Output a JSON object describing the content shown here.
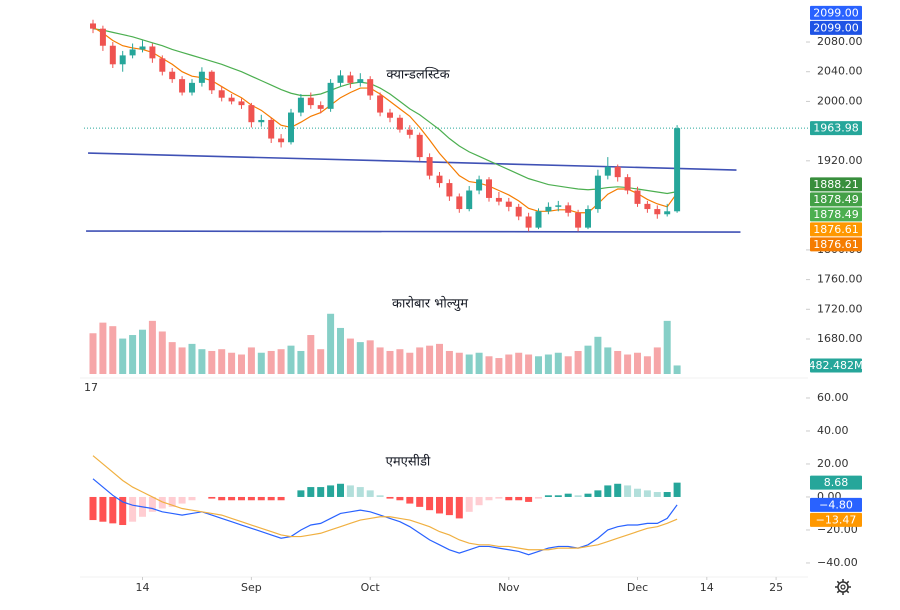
{
  "chart_data": [
    {
      "type": "candlestick",
      "title": "क्यान्डलस्टिक",
      "up_color": "#26a69a",
      "down_color": "#ef5350",
      "candles": [
        [
          2105,
          2110,
          2092,
          2098
        ],
        [
          2098,
          2102,
          2068,
          2075
        ],
        [
          2075,
          2080,
          2045,
          2050
        ],
        [
          2050,
          2068,
          2040,
          2062
        ],
        [
          2062,
          2078,
          2058,
          2070
        ],
        [
          2070,
          2082,
          2066,
          2074
        ],
        [
          2074,
          2078,
          2052,
          2058
        ],
        [
          2058,
          2062,
          2035,
          2040
        ],
        [
          2040,
          2045,
          2025,
          2030
        ],
        [
          2030,
          2034,
          2008,
          2012
        ],
        [
          2012,
          2030,
          2008,
          2025
        ],
        [
          2025,
          2046,
          2020,
          2040
        ],
        [
          2040,
          2042,
          2010,
          2015
        ],
        [
          2015,
          2020,
          2000,
          2005
        ],
        [
          2005,
          2010,
          1996,
          2000
        ],
        [
          2000,
          2004,
          1990,
          1995
        ],
        [
          1995,
          1998,
          1965,
          1972
        ],
        [
          1972,
          1982,
          1966,
          1975
        ],
        [
          1975,
          1978,
          1944,
          1950
        ],
        [
          1950,
          1956,
          1938,
          1945
        ],
        [
          1945,
          1990,
          1942,
          1985
        ],
        [
          1985,
          2010,
          1980,
          2005
        ],
        [
          2005,
          2012,
          1990,
          1995
        ],
        [
          1995,
          2000,
          1984,
          1990
        ],
        [
          1990,
          2030,
          1986,
          2025
        ],
        [
          2025,
          2042,
          2020,
          2035
        ],
        [
          2035,
          2040,
          2018,
          2025
        ],
        [
          2025,
          2038,
          2020,
          2030
        ],
        [
          2030,
          2034,
          2002,
          2008
        ],
        [
          2008,
          2012,
          1980,
          1985
        ],
        [
          1985,
          1990,
          1972,
          1978
        ],
        [
          1978,
          1982,
          1958,
          1962
        ],
        [
          1962,
          1968,
          1950,
          1955
        ],
        [
          1955,
          1958,
          1920,
          1925
        ],
        [
          1925,
          1930,
          1895,
          1900
        ],
        [
          1900,
          1905,
          1884,
          1890
        ],
        [
          1890,
          1895,
          1866,
          1872
        ],
        [
          1872,
          1876,
          1850,
          1855
        ],
        [
          1855,
          1886,
          1852,
          1880
        ],
        [
          1880,
          1900,
          1875,
          1895
        ],
        [
          1895,
          1898,
          1865,
          1870
        ],
        [
          1870,
          1878,
          1860,
          1865
        ],
        [
          1865,
          1870,
          1852,
          1858
        ],
        [
          1858,
          1862,
          1840,
          1845
        ],
        [
          1845,
          1850,
          1825,
          1830
        ],
        [
          1830,
          1856,
          1828,
          1852
        ],
        [
          1852,
          1864,
          1848,
          1858
        ],
        [
          1858,
          1866,
          1852,
          1860
        ],
        [
          1860,
          1864,
          1845,
          1850
        ],
        [
          1850,
          1854,
          1825,
          1830
        ],
        [
          1830,
          1860,
          1828,
          1855
        ],
        [
          1855,
          1908,
          1850,
          1900
        ],
        [
          1900,
          1925,
          1895,
          1912
        ],
        [
          1912,
          1915,
          1892,
          1898
        ],
        [
          1898,
          1902,
          1875,
          1880
        ],
        [
          1880,
          1885,
          1858,
          1862
        ],
        [
          1862,
          1866,
          1850,
          1855
        ],
        [
          1855,
          1860,
          1842,
          1848
        ],
        [
          1848,
          1862,
          1845,
          1852
        ],
        [
          1852,
          1968,
          1850,
          1963.98
        ]
      ],
      "series": [
        {
          "color": "#4caf50",
          "values": [
            2098,
            2096,
            2093,
            2090,
            2087,
            2083,
            2079,
            2075,
            2070,
            2066,
            2062,
            2058,
            2054,
            2050,
            2045,
            2040,
            2034,
            2028,
            2022,
            2016,
            2011,
            2008,
            2008,
            2010,
            2015,
            2020,
            2024,
            2026,
            2024,
            2018,
            2010,
            2000,
            1990,
            1982,
            1972,
            1962,
            1950,
            1940,
            1932,
            1926,
            1920,
            1914,
            1908,
            1902,
            1896,
            1892,
            1888,
            1886,
            1884,
            1882,
            1881,
            1882,
            1884,
            1885,
            1884,
            1882,
            1880,
            1878,
            1876,
            1878.49
          ]
        },
        {
          "color": "#f57c00",
          "values": [
            2100,
            2092,
            2082,
            2075,
            2072,
            2070,
            2066,
            2058,
            2050,
            2040,
            2034,
            2032,
            2028,
            2020,
            2012,
            2005,
            1995,
            1988,
            1978,
            1968,
            1965,
            1972,
            1980,
            1985,
            1995,
            2005,
            2012,
            2018,
            2018,
            2010,
            2000,
            1990,
            1980,
            1965,
            1948,
            1930,
            1915,
            1900,
            1892,
            1890,
            1886,
            1880,
            1874,
            1866,
            1856,
            1852,
            1852,
            1854,
            1854,
            1850,
            1850,
            1862,
            1875,
            1882,
            1882,
            1876,
            1868,
            1862,
            1858,
            1876.61
          ]
        }
      ],
      "ylim": [
        1631.5,
        2136.6
      ],
      "yticks": [
        {
          "value": 2080,
          "label": "2080.00"
        },
        {
          "value": 2040,
          "label": "2040.00"
        },
        {
          "value": 2000,
          "label": "2000.00"
        },
        {
          "value": 1920,
          "label": "1920.00"
        },
        {
          "value": 1800,
          "label": "1800.00"
        },
        {
          "value": 1760,
          "label": "1760.00"
        },
        {
          "value": 1720,
          "label": "1720.00"
        },
        {
          "value": 1680,
          "label": "1680.00"
        }
      ],
      "xticks": [
        {
          "value": 5,
          "label": "14"
        },
        {
          "value": 16,
          "label": "Sep"
        },
        {
          "value": 28,
          "label": "Oct"
        },
        {
          "value": 42,
          "label": "Nov"
        },
        {
          "value": 55,
          "label": "Dec"
        },
        {
          "value": 62,
          "label": "14"
        },
        {
          "value": 69,
          "label": "25"
        }
      ],
      "trendlines": [
        {
          "color": "#3f51b5",
          "points": [
            [
              -0.5,
              1930.5
            ],
            [
              65,
              1907.6
            ]
          ]
        },
        {
          "color": "#3f51b5",
          "points": [
            [
              -0.7,
              1825.4
            ],
            [
              65.4,
              1824
            ]
          ]
        }
      ],
      "price_labels": [
        {
          "value": 2099,
          "label": "2099.00",
          "color": "#2962ff"
        },
        {
          "value": 2099,
          "label": "2099.00",
          "color": "#1e53e5"
        },
        {
          "value": 1963.98,
          "label": "1963.98",
          "color": "#26a69a"
        },
        {
          "value": 1888.21,
          "label": "1888.21",
          "color": "#388e3c"
        },
        {
          "value": 1878.49,
          "label": "1878.49",
          "color": "#43a047"
        },
        {
          "value": 1878.49,
          "label": "1878.49",
          "color": "#4caf50"
        },
        {
          "value": 1876.61,
          "label": "1876.61",
          "color": "#ff9800"
        },
        {
          "value": 1876.61,
          "label": "1876.61",
          "color": "#f57c00"
        }
      ]
    },
    {
      "type": "bar",
      "title": "कारोबार भोल्युम",
      "up_color": "#86cfc7",
      "down_color": "#f6a6a8",
      "label_color": "#26a69a",
      "values": [
        2300,
        2900,
        2700,
        2000,
        2200,
        2500,
        3000,
        2400,
        1800,
        1500,
        1700,
        1400,
        1300,
        1400,
        1200,
        1100,
        1500,
        1200,
        1300,
        1400,
        1600,
        1300,
        2200,
        1400,
        3400,
        2600,
        2000,
        1800,
        1900,
        1500,
        1300,
        1400,
        1200,
        1500,
        1600,
        1700,
        1300,
        1200,
        1100,
        1200,
        1000,
        900,
        1100,
        1200,
        1100,
        1000,
        1100,
        1200,
        1000,
        1300,
        1600,
        2100,
        1500,
        1300,
        1100,
        1200,
        1000,
        1500,
        3000,
        482.482
      ],
      "value_labels": [
        null,
        null,
        null,
        null,
        null,
        null,
        null,
        null,
        null,
        null,
        null,
        null,
        null,
        null,
        null,
        null,
        null,
        null,
        null,
        null,
        null,
        null,
        null,
        null,
        null,
        null,
        null,
        null,
        null,
        null,
        null,
        null,
        null,
        null,
        null,
        null,
        null,
        null,
        null,
        null,
        null,
        null,
        null,
        null,
        null,
        null,
        null,
        null,
        null,
        null,
        null,
        null,
        null,
        null,
        null,
        null,
        null,
        null,
        null,
        "482.482M"
      ],
      "ylim": [
        0,
        3500
      ]
    },
    {
      "type": "macd",
      "title": "एमएसीडी",
      "indicator_value": "17",
      "indicator_color": "#f9a825",
      "hist_colors": {
        "up_strong": "#26a69a",
        "up_weak": "#b2dfdb",
        "down_strong": "#ff5252",
        "down_weak": "#ffcdd2"
      },
      "hist": [
        -14,
        -15,
        -16,
        -17,
        -15,
        -12,
        -9,
        -7,
        -6,
        -4,
        -2,
        0,
        -1,
        -2,
        -2,
        -2,
        -2,
        -2,
        -2,
        -2,
        0,
        4,
        6,
        6,
        7,
        8,
        7,
        6,
        4,
        1,
        -1,
        -2,
        -4,
        -6,
        -8,
        -10,
        -11,
        -13,
        -9,
        -5,
        -2,
        -1,
        -2,
        -2,
        -3,
        -1,
        1,
        1,
        2,
        1,
        2,
        4,
        7,
        8,
        7,
        5,
        4,
        3,
        3,
        8.68
      ],
      "series": [
        {
          "color": "#2962ff",
          "values": [
            11,
            6,
            1,
            -3,
            -5,
            -6,
            -7,
            -9,
            -10,
            -11,
            -10,
            -9,
            -11,
            -13,
            -15,
            -17,
            -19,
            -21,
            -23,
            -25,
            -24,
            -20,
            -17,
            -16,
            -13,
            -10,
            -9,
            -8,
            -9,
            -11,
            -13,
            -15,
            -18,
            -22,
            -26,
            -29,
            -32,
            -34,
            -32,
            -30,
            -30,
            -31,
            -32,
            -33,
            -35,
            -33,
            -31,
            -30,
            -30,
            -31,
            -29,
            -25,
            -20,
            -18,
            -17,
            -17,
            -16,
            -16,
            -13,
            -4.8
          ]
        },
        {
          "color": "#f0b041",
          "values": [
            25,
            20,
            15,
            10,
            6,
            3,
            0,
            -3,
            -5,
            -7,
            -8,
            -9,
            -10,
            -11,
            -13,
            -15,
            -17,
            -19,
            -21,
            -23,
            -24,
            -24,
            -23,
            -22,
            -20,
            -18,
            -16,
            -14,
            -13,
            -12,
            -12,
            -13,
            -14,
            -16,
            -18,
            -21,
            -23,
            -26,
            -28,
            -29,
            -29,
            -30,
            -30,
            -31,
            -32,
            -32,
            -32,
            -31,
            -31,
            -31,
            -30,
            -29,
            -27,
            -25,
            -23,
            -21,
            -19,
            -18,
            -16,
            -13.47
          ]
        }
      ],
      "ylim": [
        -47.3,
        70.9
      ],
      "yticks": [
        {
          "value": 60,
          "label": "60.00"
        },
        {
          "value": 40,
          "label": "40.00"
        },
        {
          "value": 20,
          "label": "20.00"
        },
        {
          "value": 0,
          "label": "0.00"
        },
        {
          "value": -20,
          "label": "−20.00"
        },
        {
          "value": -40,
          "label": "−40.00"
        }
      ],
      "price_labels": [
        {
          "value": 8.68,
          "label": "8.68",
          "color": "#26a69a"
        },
        {
          "value": -4.8,
          "label": "−4.80",
          "color": "#2962ff"
        },
        {
          "value": -13.47,
          "label": "−13.47",
          "color": "#ff9800"
        }
      ]
    }
  ]
}
